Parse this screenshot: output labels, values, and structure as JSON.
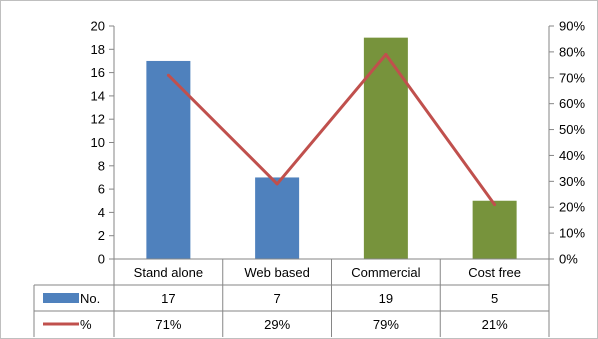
{
  "chart_data": {
    "type": "bar",
    "categories": [
      "Stand alone",
      "Web based",
      "Commercial",
      "Cost free"
    ],
    "series": [
      {
        "name": "No.",
        "kind": "bar",
        "axis": "left",
        "values": [
          17,
          7,
          19,
          5
        ],
        "colors": [
          "#4F81BD",
          "#4F81BD",
          "#77933C",
          "#77933C"
        ],
        "value_labels": [
          "17",
          "7",
          "19",
          "5"
        ]
      },
      {
        "name": "%",
        "kind": "line",
        "axis": "right",
        "values": [
          71,
          29,
          79,
          21
        ],
        "color": "#C0504D",
        "value_labels": [
          "71%",
          "29%",
          "79%",
          "21%"
        ]
      }
    ],
    "y_left": {
      "range": [
        0,
        20
      ],
      "ticks": [
        "0",
        "2",
        "4",
        "6",
        "8",
        "10",
        "12",
        "14",
        "16",
        "18",
        "20"
      ]
    },
    "y_right": {
      "range": [
        0,
        90
      ],
      "ticks": [
        "0%",
        "10%",
        "20%",
        "30%",
        "40%",
        "50%",
        "60%",
        "70%",
        "80%",
        "90%"
      ]
    },
    "grid": false,
    "data_table": true
  }
}
